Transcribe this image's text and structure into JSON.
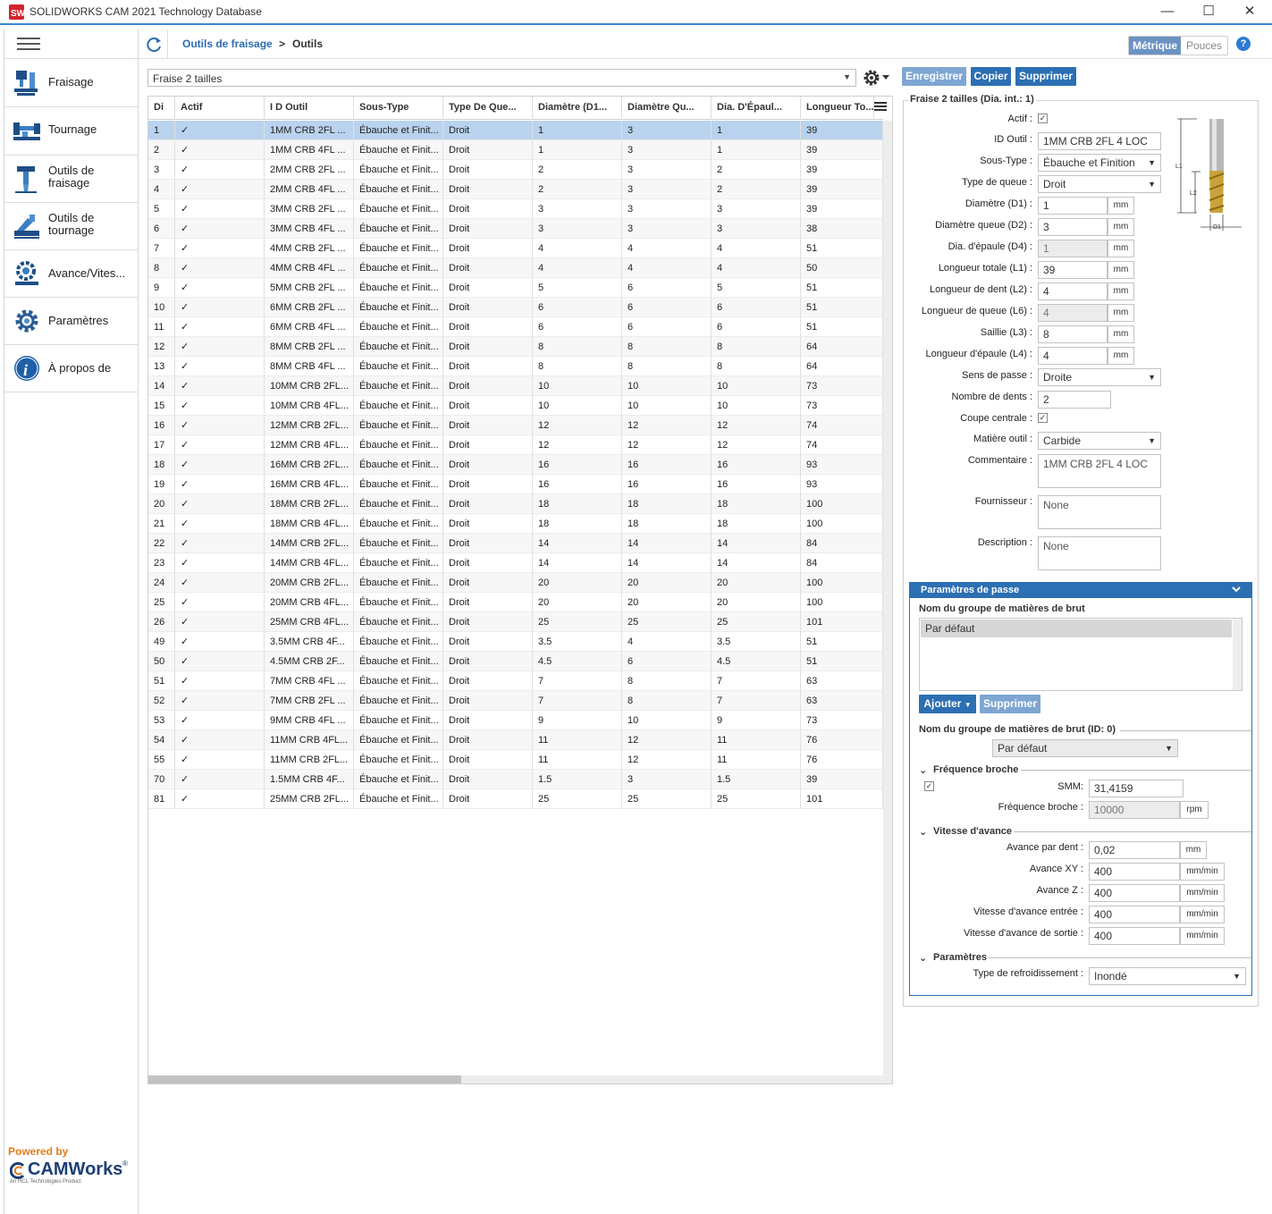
{
  "window": {
    "title": "SOLIDWORKS CAM 2021 Technology Database",
    "minimize": "—",
    "maximize": "☐",
    "close": "✕"
  },
  "sidebar": {
    "items": [
      {
        "label": "Fraisage",
        "icon": "milling-machine-icon"
      },
      {
        "label": "Tournage",
        "icon": "lathe-icon"
      },
      {
        "label": "Outils de\nfraisage",
        "icon": "milling-tool-icon"
      },
      {
        "label": "Outils de\ntournage",
        "icon": "turning-tool-icon"
      },
      {
        "label": "Avance/Vites...",
        "icon": "feed-speed-icon"
      },
      {
        "label": "Paramètres",
        "icon": "gear-icon"
      },
      {
        "label": "À propos de",
        "icon": "info-icon"
      }
    ],
    "powered_by": "Powered by",
    "brand": "CAMWorks",
    "brand_tm": "®",
    "brand_sub": "An HCL Technologies Product"
  },
  "topbar": {
    "breadcrumb_parent": "Outils de fraisage",
    "breadcrumb_sep": ">",
    "breadcrumb_current": "Outils",
    "unit_metric": "Métrique",
    "unit_inch": "Pouces",
    "help": "?"
  },
  "toolbar": {
    "type_combo": "Fraise 2 tailles",
    "save": "Enregistrer",
    "copy": "Copier",
    "delete": "Supprimer"
  },
  "grid": {
    "columns": [
      "Di",
      "Actif",
      "I D Outil",
      "Sous-Type",
      "Type De Que...",
      "Diamètre (D1...",
      "Diamètre Qu...",
      "Dia. D'Épaul...",
      "Longueur To..."
    ],
    "rows": [
      [
        "1",
        "✓",
        "1MM CRB 2FL ...",
        "Ébauche et Finit...",
        "Droit",
        "1",
        "3",
        "1",
        "39"
      ],
      [
        "2",
        "✓",
        "1MM CRB 4FL ...",
        "Ébauche et Finit...",
        "Droit",
        "1",
        "3",
        "1",
        "39"
      ],
      [
        "3",
        "✓",
        "2MM CRB 2FL ...",
        "Ébauche et Finit...",
        "Droit",
        "2",
        "3",
        "2",
        "39"
      ],
      [
        "4",
        "✓",
        "2MM CRB 4FL ...",
        "Ébauche et Finit...",
        "Droit",
        "2",
        "3",
        "2",
        "39"
      ],
      [
        "5",
        "✓",
        "3MM CRB 2FL ...",
        "Ébauche et Finit...",
        "Droit",
        "3",
        "3",
        "3",
        "39"
      ],
      [
        "6",
        "✓",
        "3MM CRB 4FL ...",
        "Ébauche et Finit...",
        "Droit",
        "3",
        "3",
        "3",
        "38"
      ],
      [
        "7",
        "✓",
        "4MM CRB 2FL ...",
        "Ébauche et Finit...",
        "Droit",
        "4",
        "4",
        "4",
        "51"
      ],
      [
        "8",
        "✓",
        "4MM CRB 4FL ...",
        "Ébauche et Finit...",
        "Droit",
        "4",
        "4",
        "4",
        "50"
      ],
      [
        "9",
        "✓",
        "5MM CRB 2FL ...",
        "Ébauche et Finit...",
        "Droit",
        "5",
        "6",
        "5",
        "51"
      ],
      [
        "10",
        "✓",
        "6MM CRB 2FL ...",
        "Ébauche et Finit...",
        "Droit",
        "6",
        "6",
        "6",
        "51"
      ],
      [
        "11",
        "✓",
        "6MM CRB 4FL ...",
        "Ébauche et Finit...",
        "Droit",
        "6",
        "6",
        "6",
        "51"
      ],
      [
        "12",
        "✓",
        "8MM CRB 2FL ...",
        "Ébauche et Finit...",
        "Droit",
        "8",
        "8",
        "8",
        "64"
      ],
      [
        "13",
        "✓",
        "8MM CRB 4FL ...",
        "Ébauche et Finit...",
        "Droit",
        "8",
        "8",
        "8",
        "64"
      ],
      [
        "14",
        "✓",
        "10MM CRB 2FL...",
        "Ébauche et Finit...",
        "Droit",
        "10",
        "10",
        "10",
        "73"
      ],
      [
        "15",
        "✓",
        "10MM CRB 4FL...",
        "Ébauche et Finit...",
        "Droit",
        "10",
        "10",
        "10",
        "73"
      ],
      [
        "16",
        "✓",
        "12MM CRB 2FL...",
        "Ébauche et Finit...",
        "Droit",
        "12",
        "12",
        "12",
        "74"
      ],
      [
        "17",
        "✓",
        "12MM CRB 4FL...",
        "Ébauche et Finit...",
        "Droit",
        "12",
        "12",
        "12",
        "74"
      ],
      [
        "18",
        "✓",
        "16MM CRB 2FL...",
        "Ébauche et Finit...",
        "Droit",
        "16",
        "16",
        "16",
        "93"
      ],
      [
        "19",
        "✓",
        "16MM CRB 4FL...",
        "Ébauche et Finit...",
        "Droit",
        "16",
        "16",
        "16",
        "93"
      ],
      [
        "20",
        "✓",
        "18MM CRB 2FL...",
        "Ébauche et Finit...",
        "Droit",
        "18",
        "18",
        "18",
        "100"
      ],
      [
        "21",
        "✓",
        "18MM CRB 4FL...",
        "Ébauche et Finit...",
        "Droit",
        "18",
        "18",
        "18",
        "100"
      ],
      [
        "22",
        "✓",
        "14MM CRB 2FL...",
        "Ébauche et Finit...",
        "Droit",
        "14",
        "14",
        "14",
        "84"
      ],
      [
        "23",
        "✓",
        "14MM CRB 4FL...",
        "Ébauche et Finit...",
        "Droit",
        "14",
        "14",
        "14",
        "84"
      ],
      [
        "24",
        "✓",
        "20MM CRB 2FL...",
        "Ébauche et Finit...",
        "Droit",
        "20",
        "20",
        "20",
        "100"
      ],
      [
        "25",
        "✓",
        "20MM CRB 4FL...",
        "Ébauche et Finit...",
        "Droit",
        "20",
        "20",
        "20",
        "100"
      ],
      [
        "26",
        "✓",
        "25MM CRB 4FL...",
        "Ébauche et Finit...",
        "Droit",
        "25",
        "25",
        "25",
        "101"
      ],
      [
        "49",
        "✓",
        "3.5MM CRB 4F...",
        "Ébauche et Finit...",
        "Droit",
        "3.5",
        "4",
        "3.5",
        "51"
      ],
      [
        "50",
        "✓",
        "4.5MM CRB 2F...",
        "Ébauche et Finit...",
        "Droit",
        "4.5",
        "6",
        "4.5",
        "51"
      ],
      [
        "51",
        "✓",
        "7MM CRB 4FL ...",
        "Ébauche et Finit...",
        "Droit",
        "7",
        "8",
        "7",
        "63"
      ],
      [
        "52",
        "✓",
        "7MM CRB 2FL ...",
        "Ébauche et Finit...",
        "Droit",
        "7",
        "8",
        "7",
        "63"
      ],
      [
        "53",
        "✓",
        "9MM CRB 4FL ...",
        "Ébauche et Finit...",
        "Droit",
        "9",
        "10",
        "9",
        "73"
      ],
      [
        "54",
        "✓",
        "11MM CRB 4FL...",
        "Ébauche et Finit...",
        "Droit",
        "11",
        "12",
        "11",
        "76"
      ],
      [
        "55",
        "✓",
        "11MM CRB 2FL...",
        "Ébauche et Finit...",
        "Droit",
        "11",
        "12",
        "11",
        "76"
      ],
      [
        "70",
        "✓",
        "1.5MM CRB 4F...",
        "Ébauche et Finit...",
        "Droit",
        "1.5",
        "3",
        "1.5",
        "39"
      ],
      [
        "81",
        "✓",
        "25MM CRB 2FL...",
        "Ébauche et Finit...",
        "Droit",
        "25",
        "25",
        "25",
        "101"
      ]
    ]
  },
  "detail": {
    "legend": "Fraise 2 tailles (Dia. int.: 1)",
    "diagram_labels": {
      "l1": "L1",
      "l2": "L2",
      "d1": "D1"
    },
    "actif_label": "Actif :",
    "id_label": "ID Outil :",
    "id_value": "1MM CRB 2FL 4 LOC",
    "subtype_label": "Sous-Type :",
    "subtype_value": "Ébauche et Finition",
    "shank_label": "Type de queue :",
    "shank_value": "Droit",
    "d1_label": "Diamètre (D1) :",
    "d1_value": "1",
    "d2_label": "Diamètre queue (D2) :",
    "d2_value": "3",
    "d4_label": "Dia. d'épaule (D4) :",
    "d4_value": "1",
    "l1_label": "Longueur totale (L1) :",
    "l1_value": "39",
    "l2_label": "Longueur de dent (L2) :",
    "l2_value": "4",
    "l6_label": "Longueur de queue (L6) :",
    "l6_value": "4",
    "l3_label": "Saillie (L3) :",
    "l3_value": "8",
    "l4_label": "Longueur d'épaule (L4) :",
    "l4_value": "4",
    "unit_mm": "mm",
    "direction_label": "Sens de passe :",
    "direction_value": "Droite",
    "teeth_label": "Nombre de dents :",
    "teeth_value": "2",
    "center_label": "Coupe centrale :",
    "material_label": "Matière outil :",
    "material_value": "Carbide",
    "comment_label": "Commentaire :",
    "comment_value": "1MM CRB 2FL 4 LOC",
    "supplier_label": "Fournisseur :",
    "supplier_value": "None",
    "description_label": "Description :",
    "description_value": "None",
    "check": "✓"
  },
  "pass_params": {
    "header": "Paramètres de passe",
    "group_list_label": "Nom du groupe de matières de brut",
    "group_item": "Par défaut",
    "add": "Ajouter",
    "delete": "Supprimer",
    "group_id_label": "Nom du groupe de matières de brut (ID: 0)",
    "group_select": "Par défaut",
    "spindle_section": "Fréquence broche",
    "smm_label": "SMM:",
    "smm_value": "31,4159",
    "spindle_label": "Fréquence broche :",
    "spindle_value": "10000",
    "rpm": "rpm",
    "feed_section": "Vitesse d'avance",
    "fpt_label": "Avance par dent :",
    "fpt_value": "0,02",
    "fpt_unit": "mm",
    "xy_label": "Avance XY :",
    "xy_value": "400",
    "z_label": "Avance Z :",
    "z_value": "400",
    "entry_label": "Vitesse d'avance entrée :",
    "entry_value": "400",
    "exit_label": "Vitesse d'avance de sortie :",
    "exit_value": "400",
    "mmmin": "mm/min",
    "params_section": "Paramètres",
    "coolant_label": "Type de refroidissement :",
    "coolant_value": "Inondé"
  },
  "colors": {
    "accent": "#2c6fb3",
    "selected_row": "#b9d3ee",
    "brand_orange": "#e07b1c"
  }
}
